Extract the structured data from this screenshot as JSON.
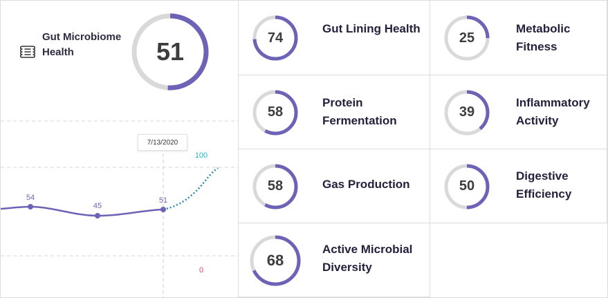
{
  "overall": {
    "title": "Gut Microbiome Health",
    "score": "51",
    "score_value": 51,
    "icon": "intestine-icon"
  },
  "trend": {
    "tooltip_date": "7/13/2020",
    "axis_top_label": "100",
    "axis_bottom_label": "0",
    "points": [
      {
        "label": "54",
        "value": 54
      },
      {
        "label": "45",
        "value": 45
      },
      {
        "label": "51",
        "value": 51
      }
    ]
  },
  "metrics": [
    {
      "label": "Gut Lining Health",
      "score": "74",
      "value": 74
    },
    {
      "label": "Metabolic Fitness",
      "score": "25",
      "value": 25
    },
    {
      "label": "Protein Fermentation",
      "score": "58",
      "value": 58
    },
    {
      "label": "Inflammatory Activity",
      "score": "39",
      "value": 39
    },
    {
      "label": "Gas Production",
      "score": "58",
      "value": 58
    },
    {
      "label": "Digestive Efficiency",
      "score": "50",
      "value": 50
    },
    {
      "label": "Active Microbial Diversity",
      "score": "68",
      "value": 68
    }
  ],
  "colors": {
    "accent": "#6c63b6",
    "track": "#d9d9d9",
    "top_label": "#22b3c4",
    "bottom_label": "#e0435f",
    "grid": "#d6d6d6"
  }
}
